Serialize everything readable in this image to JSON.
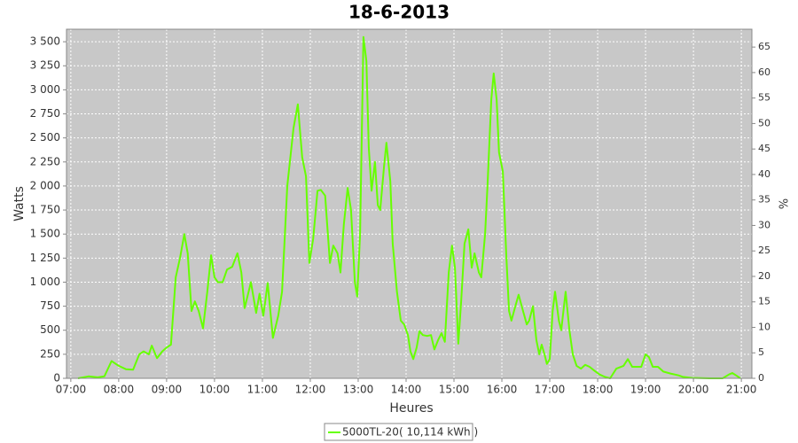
{
  "chart_data": {
    "type": "line",
    "title": "18-6-2013",
    "xlabel": "Heures",
    "ylabel": "Watts",
    "y2label": "%",
    "xlim": [
      6.91,
      21.22
    ],
    "xticks": [
      {
        "value": 7,
        "label": "07:00"
      },
      {
        "value": 8,
        "label": "08:00"
      },
      {
        "value": 9,
        "label": "09:00"
      },
      {
        "value": 10,
        "label": "10:00"
      },
      {
        "value": 11,
        "label": "11:00"
      },
      {
        "value": 12,
        "label": "12:00"
      },
      {
        "value": 13,
        "label": "13:00"
      },
      {
        "value": 14,
        "label": "14:00"
      },
      {
        "value": 15,
        "label": "15:00"
      },
      {
        "value": 16,
        "label": "16:00"
      },
      {
        "value": 17,
        "label": "17:00"
      },
      {
        "value": 18,
        "label": "18:00"
      },
      {
        "value": 19,
        "label": "19:00"
      },
      {
        "value": 20,
        "label": "20:00"
      },
      {
        "value": 21,
        "label": "21:00"
      }
    ],
    "ylim": [
      0,
      3630
    ],
    "yticks": [
      0,
      250,
      500,
      750,
      {
        "value": 1000,
        "label": "1 000"
      },
      {
        "value": 1250,
        "label": "1 250"
      },
      {
        "value": 1500,
        "label": "1 500"
      },
      {
        "value": 1750,
        "label": "1 750"
      },
      {
        "value": 2000,
        "label": "2 000"
      },
      {
        "value": 2250,
        "label": "2 250"
      },
      {
        "value": 2500,
        "label": "2 500"
      },
      {
        "value": 2750,
        "label": "2 750"
      },
      {
        "value": 3000,
        "label": "3 000"
      },
      {
        "value": 3250,
        "label": "3 250"
      },
      {
        "value": 3500,
        "label": "3 500"
      }
    ],
    "y2lim": [
      0,
      68.5
    ],
    "y2ticks": [
      0,
      5,
      10,
      15,
      20,
      25,
      30,
      35,
      40,
      45,
      50,
      55,
      60,
      65
    ],
    "grid": true,
    "legend": "bottom",
    "x": [
      7.15,
      7.37,
      7.56,
      7.7,
      7.85,
      8.0,
      8.15,
      8.3,
      8.43,
      8.52,
      8.63,
      8.69,
      8.8,
      8.91,
      9.0,
      9.09,
      9.19,
      9.28,
      9.37,
      9.44,
      9.52,
      9.59,
      9.67,
      9.76,
      9.85,
      9.93,
      10.0,
      10.07,
      10.17,
      10.26,
      10.37,
      10.48,
      10.56,
      10.63,
      10.76,
      10.87,
      10.94,
      11.02,
      11.11,
      11.22,
      11.33,
      11.41,
      11.52,
      11.65,
      11.74,
      11.83,
      11.91,
      11.98,
      12.06,
      12.15,
      12.22,
      12.31,
      12.41,
      12.48,
      12.57,
      12.63,
      12.7,
      12.78,
      12.85,
      12.93,
      12.98,
      13.04,
      13.11,
      13.17,
      13.22,
      13.28,
      13.35,
      13.41,
      13.46,
      13.54,
      13.59,
      13.67,
      13.72,
      13.81,
      13.89,
      13.96,
      14.04,
      14.09,
      14.15,
      14.22,
      14.28,
      14.35,
      14.44,
      14.52,
      14.59,
      14.67,
      14.74,
      14.81,
      14.89,
      14.96,
      15.02,
      15.09,
      15.15,
      15.22,
      15.3,
      15.37,
      15.43,
      15.52,
      15.57,
      15.65,
      15.7,
      15.78,
      15.83,
      15.89,
      15.94,
      16.02,
      16.09,
      16.15,
      16.2,
      16.28,
      16.35,
      16.43,
      16.52,
      16.57,
      16.65,
      16.72,
      16.78,
      16.83,
      16.89,
      16.94,
      17.0,
      17.06,
      17.11,
      17.19,
      17.24,
      17.33,
      17.41,
      17.48,
      17.56,
      17.65,
      17.74,
      17.83,
      17.93,
      18.04,
      18.15,
      18.26,
      18.39,
      18.54,
      18.63,
      18.72,
      18.91,
      19.0,
      19.07,
      19.15,
      19.26,
      19.37,
      19.52,
      19.69,
      19.78,
      19.96,
      20.33,
      20.61,
      20.74,
      20.81,
      20.89,
      20.98
    ],
    "series": [
      {
        "name": "5000TL-20( 10,114 kWh )",
        "color": "#66ff00",
        "values": [
          0,
          20,
          10,
          20,
          180,
          130,
          95,
          90,
          250,
          280,
          250,
          340,
          210,
          280,
          320,
          350,
          1050,
          1250,
          1500,
          1300,
          700,
          800,
          700,
          520,
          900,
          1280,
          1050,
          1000,
          1000,
          1130,
          1160,
          1300,
          1100,
          730,
          1000,
          680,
          880,
          650,
          990,
          420,
          650,
          900,
          2000,
          2600,
          2850,
          2300,
          2100,
          1200,
          1450,
          1950,
          1960,
          1900,
          1200,
          1380,
          1300,
          1100,
          1600,
          1980,
          1750,
          1000,
          850,
          1500,
          3550,
          3300,
          2400,
          1950,
          2250,
          1800,
          1750,
          2200,
          2450,
          2050,
          1400,
          900,
          600,
          560,
          450,
          280,
          200,
          320,
          490,
          450,
          440,
          450,
          300,
          400,
          470,
          380,
          1100,
          1380,
          1150,
          360,
          800,
          1400,
          1550,
          1150,
          1300,
          1100,
          1050,
          1500,
          2000,
          2900,
          3170,
          2900,
          2350,
          2150,
          1300,
          700,
          600,
          750,
          870,
          720,
          560,
          600,
          750,
          400,
          250,
          350,
          250,
          150,
          200,
          700,
          900,
          600,
          500,
          900,
          500,
          250,
          130,
          100,
          140,
          120,
          80,
          40,
          15,
          0,
          100,
          130,
          200,
          120,
          120,
          250,
          220,
          120,
          120,
          70,
          50,
          30,
          15,
          5,
          0,
          0,
          40,
          55,
          30,
          0
        ]
      }
    ]
  }
}
